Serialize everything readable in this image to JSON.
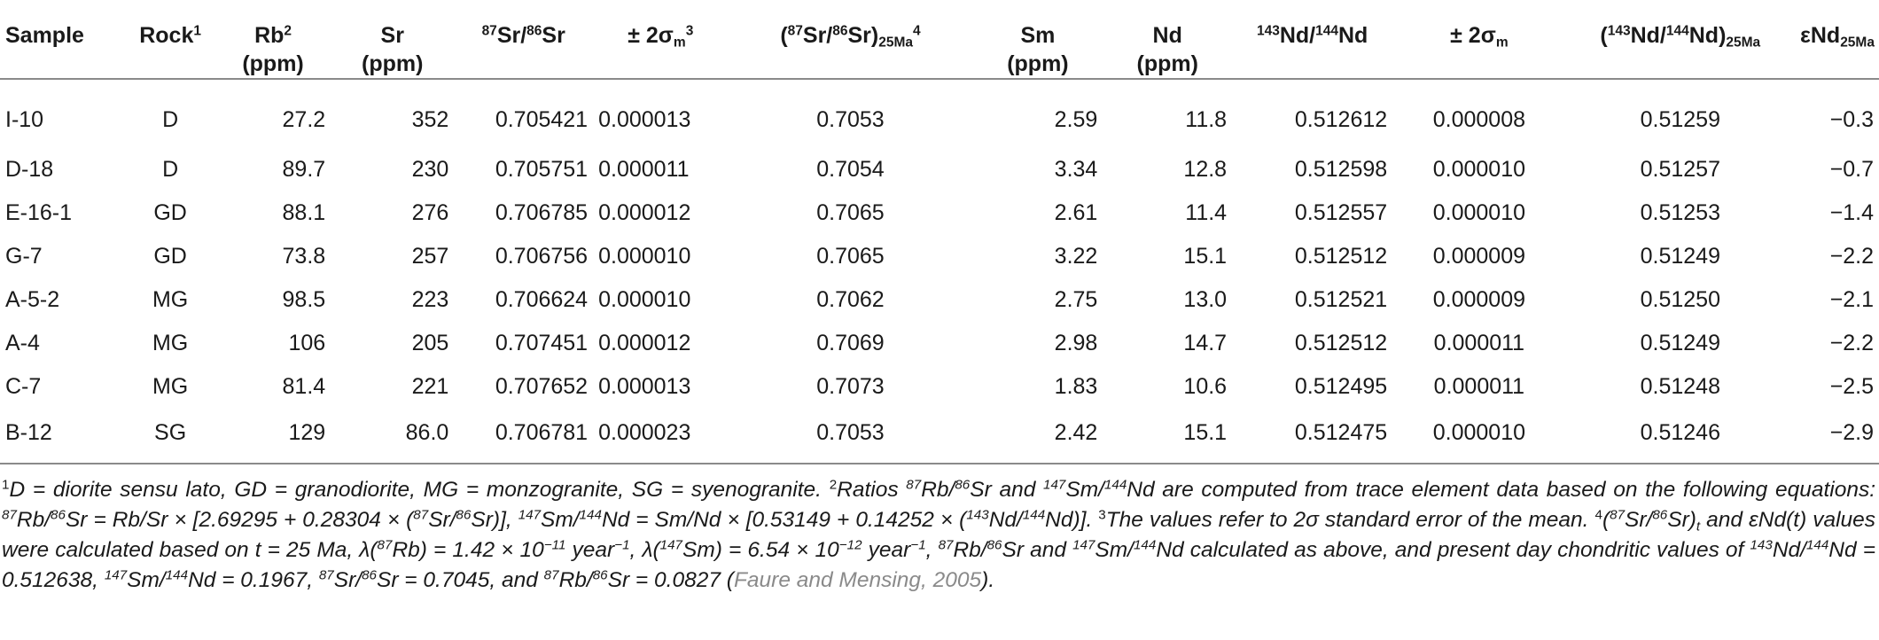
{
  "table": {
    "headers": {
      "sample": "Sample",
      "rock": "Rock",
      "rock_sup": "1",
      "rb": "Rb",
      "rb_sup": "2",
      "rb_unit": "(ppm)",
      "sr": "Sr",
      "sr_unit": "(ppm)",
      "sr_ratio_sup1": "87",
      "sr_ratio_a": "Sr/",
      "sr_ratio_sup2": "86",
      "sr_ratio_b": "Sr",
      "err1_a": "± 2σ",
      "err1_sub": "m",
      "err1_sup": "3",
      "sr_init_open": "(",
      "sr_init_sup1": "87",
      "sr_init_a": "Sr/",
      "sr_init_sup2": "86",
      "sr_init_b": "Sr)",
      "sr_init_sub": "25Ma",
      "sr_init_sup3": "4",
      "sm": "Sm",
      "sm_unit": "(ppm)",
      "nd": "Nd",
      "nd_unit": "(ppm)",
      "nd_ratio_sup1": "143",
      "nd_ratio_a": "Nd/",
      "nd_ratio_sup2": "144",
      "nd_ratio_b": "Nd",
      "err2_a": "± 2σ",
      "err2_sub": "m",
      "nd_init_open": "(",
      "nd_init_sup1": "143",
      "nd_init_a": "Nd/",
      "nd_init_sup2": "144",
      "nd_init_b": "Nd)",
      "nd_init_sub": "25Ma",
      "end_a": "εNd",
      "end_sub": "25Ma"
    },
    "rows": [
      [
        "I-10",
        "D",
        "27.2",
        "352",
        "0.705421",
        "0.000013",
        "0.7053",
        "2.59",
        "11.8",
        "0.512612",
        "0.000008",
        "0.51259",
        "−0.3"
      ],
      [
        "D-18",
        "D",
        "89.7",
        "230",
        "0.705751",
        "0.000011",
        "0.7054",
        "3.34",
        "12.8",
        "0.512598",
        "0.000010",
        "0.51257",
        "−0.7"
      ],
      [
        "E-16-1",
        "GD",
        "88.1",
        "276",
        "0.706785",
        "0.000012",
        "0.7065",
        "2.61",
        "11.4",
        "0.512557",
        "0.000010",
        "0.51253",
        "−1.4"
      ],
      [
        "G-7",
        "GD",
        "73.8",
        "257",
        "0.706756",
        "0.000010",
        "0.7065",
        "3.22",
        "15.1",
        "0.512512",
        "0.000009",
        "0.51249",
        "−2.2"
      ],
      [
        "A-5-2",
        "MG",
        "98.5",
        "223",
        "0.706624",
        "0.000010",
        "0.7062",
        "2.75",
        "13.0",
        "0.512521",
        "0.000009",
        "0.51250",
        "−2.1"
      ],
      [
        "A-4",
        "MG",
        "106",
        "205",
        "0.707451",
        "0.000012",
        "0.7069",
        "2.98",
        "14.7",
        "0.512512",
        "0.000011",
        "0.51249",
        "−2.2"
      ],
      [
        "C-7",
        "MG",
        "81.4",
        "221",
        "0.707652",
        "0.000013",
        "0.7073",
        "1.83",
        "10.6",
        "0.512495",
        "0.000011",
        "0.51248",
        "−2.5"
      ],
      [
        "B-12",
        "SG",
        "129",
        "86.0",
        "0.706781",
        "0.000023",
        "0.7053",
        "2.42",
        "15.1",
        "0.512475",
        "0.000010",
        "0.51246",
        "−2.9"
      ]
    ]
  },
  "footnotes": {
    "n1_sup": "1",
    "n1_text": "D = diorite sensu lato, GD = granodiorite, MG = monzogranite, SG = syenogranite.",
    "n2_sup": "2",
    "n2_a": "Ratios",
    "n2_b": "Rb/",
    "n2_c": "Sr and",
    "n2_d": "Sm/",
    "n2_e": "Nd are computed from trace element data based on the following equations:",
    "n2_f": "Rb/",
    "n2_g": "Sr = Rb/Sr × [2.69295 + 0.28304 × (",
    "n2_h": "Sr/",
    "n2_i": "Sr)],",
    "n2_j": "Sm/",
    "n2_k": "Nd = Sm/Nd × [0.53149 + 0.14252 × (",
    "n2_l": "Nd/",
    "n2_m": "Nd)].",
    "n3_sup": "3",
    "n3_text": "The values refer to 2σ standard error of the mean.",
    "n4_sup": "4",
    "n4_a": "(",
    "n4_b": "Sr/",
    "n4_c": "Sr)",
    "n4_sub_t": "t",
    "n4_d": "and εNd(t) values were calculated based on t = 25 Ma, λ(",
    "n4_e": "Rb) = 1.42 × 10",
    "n4_exp1": "−11",
    "n4_f": "year",
    "n4_exp_yr": "−1",
    "n4_g": ", λ(",
    "n4_h": "Sm) = 6.54 × 10",
    "n4_exp2": "−12",
    "n4_i": "year",
    "n4_j": ",",
    "n4_k": "Rb/",
    "n4_l": "Sr and",
    "n4_m": "Sm/",
    "n4_n": "Nd calculated as above, and present day chondritic values of",
    "n4_o": "Nd/",
    "n4_p": "Nd = 0.512638,",
    "n4_q": "Sm/",
    "n4_r": "Nd = 0.1967,",
    "n4_s": "Sr/",
    "n4_t": "Sr = 0.7045, and",
    "n4_u": "Rb/",
    "n4_v": "Sr = 0.0827 (",
    "n4_ref": "Faure and Mensing, 2005",
    "n4_end": ").",
    "iso": {
      "i87": "87",
      "i86": "86",
      "i147": "147",
      "i144": "144",
      "i143": "143"
    }
  }
}
